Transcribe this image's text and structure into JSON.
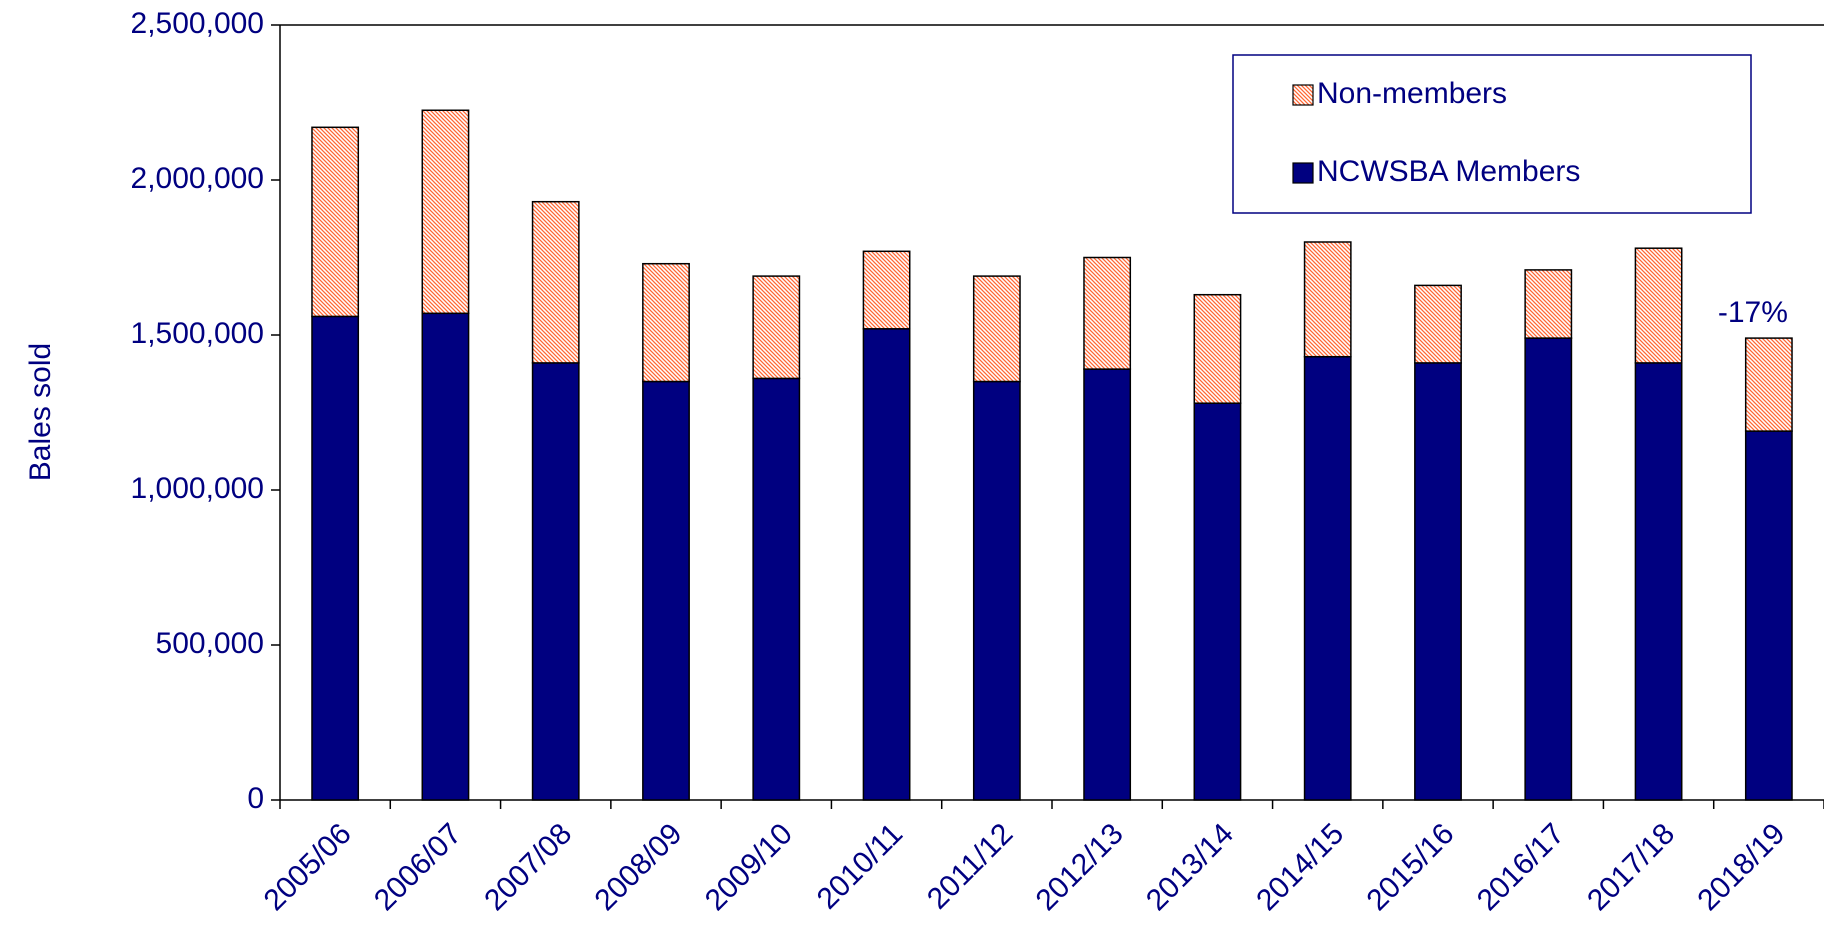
{
  "chart_data": {
    "type": "stacked_bar",
    "y_label": "Bales sold",
    "categories": [
      "2005/06",
      "2006/07",
      "2007/08",
      "2008/09",
      "2009/10",
      "2010/11",
      "2011/12",
      "2012/13",
      "2013/14",
      "2014/15",
      "2015/16",
      "2016/17",
      "2017/18",
      "2018/19"
    ],
    "series": [
      {
        "name": "NCWSBA Members",
        "color": "#000080",
        "values": [
          1560000,
          1570000,
          1410000,
          1350000,
          1360000,
          1520000,
          1350000,
          1390000,
          1280000,
          1430000,
          1410000,
          1490000,
          1410000,
          1190000
        ]
      },
      {
        "name": "Non-members",
        "color": "#ff6633",
        "hatch": true,
        "values": [
          610000,
          655000,
          520000,
          380000,
          330000,
          250000,
          340000,
          360000,
          350000,
          370000,
          250000,
          220000,
          370000,
          300000
        ]
      }
    ],
    "ylim": [
      0,
      2500000
    ],
    "yticks": [
      0,
      {
        "value": 500000,
        "label": "500,000"
      },
      {
        "value": 1000000,
        "label": "1,000,000"
      },
      {
        "value": 1500000,
        "label": "1,500,000"
      },
      {
        "value": 2000000,
        "label": "2,000,000"
      },
      {
        "value": 2500000,
        "label": "2,500,000"
      }
    ],
    "legend": "top-right",
    "annotations": [
      {
        "text": "-17%",
        "category": "2018/19",
        "color": "#ff0000"
      }
    ]
  }
}
